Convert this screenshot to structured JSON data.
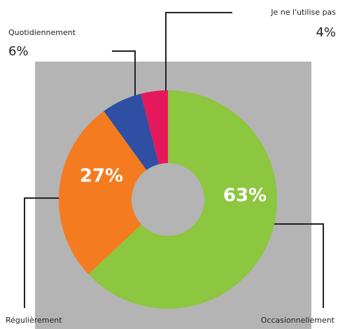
{
  "chart_data": {
    "type": "donut",
    "categories": [
      "Occasionnellement",
      "Régulièrement",
      "Quotidiennement",
      "Je ne l'utilise pas"
    ],
    "values": [
      63,
      27,
      6,
      4
    ],
    "value_labels": [
      "63%",
      "27%",
      "6%",
      "4%"
    ],
    "colors": [
      "#8dc63f",
      "#f47b20",
      "#2e4fa3",
      "#e5185b"
    ],
    "background": "#b4b4b4"
  }
}
